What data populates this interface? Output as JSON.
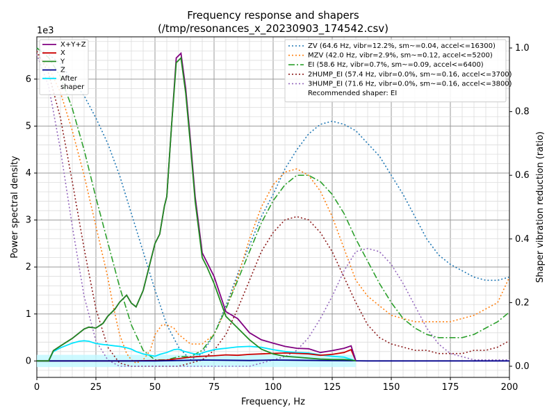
{
  "chart_data": {
    "type": "line",
    "title": "Frequency response and shapers\n(/tmp/resonances_x_20230903_174542.csv)",
    "xlabel": "Frequency, Hz",
    "ylabel": "Power spectral density",
    "y2label": "Shaper vibration reduction (ratio)",
    "y_scale_label": "1e3",
    "xlim": [
      0,
      200
    ],
    "ylim": [
      -350,
      6900
    ],
    "y2lim": [
      -0.035,
      1.035
    ],
    "x_ticks": [
      0,
      25,
      50,
      75,
      100,
      125,
      150,
      175,
      200
    ],
    "y_ticks": [
      0,
      1000,
      2000,
      3000,
      4000,
      5000,
      6000
    ],
    "y_tick_labels": [
      "0",
      "1",
      "2",
      "3",
      "4",
      "5",
      "6"
    ],
    "y2_ticks": [
      0.0,
      0.2,
      0.4,
      0.6,
      0.8,
      1.0
    ],
    "y2_tick_labels": [
      "0.0",
      "0.2",
      "0.4",
      "0.6",
      "0.8",
      "1.0"
    ],
    "grid": true,
    "psd_series": [
      {
        "name": "X+Y+Z",
        "color": "#800080",
        "dash": "solid",
        "x": [
          0,
          5,
          7,
          10,
          15,
          20,
          22,
          25,
          28,
          30,
          33,
          35,
          38,
          40,
          42,
          45,
          48,
          50,
          52,
          54,
          55,
          57,
          59,
          61,
          63,
          65,
          67,
          70,
          72,
          75,
          80,
          85,
          90,
          95,
          100,
          105,
          110,
          115,
          120,
          125,
          130,
          133,
          135
        ],
        "y": [
          0,
          0,
          220,
          320,
          480,
          680,
          720,
          700,
          800,
          950,
          1100,
          1250,
          1400,
          1230,
          1150,
          1500,
          2100,
          2500,
          2700,
          3300,
          3500,
          5000,
          6450,
          6550,
          5800,
          4700,
          3500,
          2300,
          2100,
          1800,
          1050,
          900,
          600,
          450,
          380,
          310,
          270,
          260,
          180,
          220,
          270,
          320,
          0
        ]
      },
      {
        "name": "X",
        "color": "#cc0000",
        "dash": "solid",
        "x": [
          0,
          10,
          20,
          30,
          40,
          50,
          55,
          60,
          65,
          70,
          75,
          80,
          85,
          90,
          95,
          100,
          105,
          110,
          115,
          120,
          125,
          130,
          133,
          135
        ],
        "y": [
          0,
          0,
          0,
          0,
          0,
          10,
          20,
          50,
          80,
          100,
          110,
          130,
          120,
          140,
          150,
          160,
          170,
          160,
          150,
          120,
          140,
          180,
          240,
          0
        ]
      },
      {
        "name": "Y",
        "color": "#228B22",
        "dash": "solid",
        "x": [
          0,
          5,
          7,
          10,
          15,
          20,
          22,
          25,
          28,
          30,
          33,
          35,
          38,
          40,
          42,
          45,
          48,
          50,
          52,
          54,
          55,
          57,
          59,
          61,
          63,
          65,
          67,
          70,
          72,
          75,
          80,
          85,
          90,
          95,
          100,
          105,
          110,
          115,
          120,
          125,
          130,
          133,
          135
        ],
        "y": [
          0,
          0,
          220,
          320,
          480,
          680,
          720,
          700,
          800,
          950,
          1100,
          1250,
          1400,
          1230,
          1150,
          1500,
          2100,
          2500,
          2700,
          3300,
          3500,
          5000,
          6350,
          6450,
          5700,
          4600,
          3400,
          2200,
          2000,
          1650,
          950,
          700,
          450,
          250,
          150,
          100,
          80,
          60,
          40,
          30,
          30,
          20,
          0
        ]
      },
      {
        "name": "Z",
        "color": "#00008B",
        "dash": "solid",
        "x": [
          0,
          10,
          20,
          30,
          40,
          50,
          60,
          70,
          80,
          90,
          100,
          110,
          120,
          130,
          140,
          150,
          160,
          170,
          180,
          190,
          200
        ],
        "y": [
          0,
          0,
          0,
          0,
          0,
          0,
          10,
          20,
          15,
          10,
          20,
          15,
          10,
          5,
          0,
          0,
          0,
          0,
          0,
          0,
          0
        ]
      },
      {
        "name": "After\nshaper",
        "color": "#00e5ff",
        "dash": "solid",
        "x": [
          0,
          5,
          7,
          10,
          15,
          18,
          20,
          22,
          25,
          28,
          30,
          33,
          35,
          38,
          40,
          42,
          45,
          48,
          50,
          52,
          55,
          58,
          60,
          62,
          65,
          68,
          70,
          72,
          75,
          78,
          80,
          85,
          90,
          95,
          100,
          105,
          110,
          115,
          120,
          125,
          130,
          135
        ],
        "y": [
          0,
          0,
          200,
          280,
          380,
          420,
          430,
          420,
          370,
          350,
          340,
          320,
          310,
          280,
          250,
          200,
          150,
          120,
          100,
          140,
          180,
          240,
          250,
          210,
          170,
          140,
          170,
          200,
          240,
          260,
          270,
          300,
          310,
          290,
          240,
          200,
          180,
          170,
          130,
          100,
          80,
          0
        ]
      }
    ],
    "shaper_series": [
      {
        "name": "ZV (64.6 Hz, vibr=12.2%, sm~=0.04, accel<=16300)",
        "color": "#1f77b4",
        "dash": "dotted",
        "x": [
          0,
          5,
          10,
          15,
          20,
          25,
          30,
          35,
          40,
          45,
          50,
          55,
          60,
          65,
          70,
          75,
          80,
          85,
          90,
          95,
          100,
          105,
          110,
          115,
          120,
          125,
          130,
          135,
          140,
          145,
          150,
          155,
          160,
          165,
          170,
          175,
          180,
          185,
          190,
          195,
          200
        ],
        "y": [
          1.0,
          0.98,
          0.95,
          0.9,
          0.85,
          0.78,
          0.7,
          0.6,
          0.48,
          0.36,
          0.24,
          0.13,
          0.06,
          0.02,
          0.04,
          0.1,
          0.19,
          0.29,
          0.38,
          0.47,
          0.54,
          0.62,
          0.68,
          0.73,
          0.76,
          0.77,
          0.76,
          0.74,
          0.7,
          0.66,
          0.6,
          0.54,
          0.47,
          0.4,
          0.35,
          0.32,
          0.3,
          0.28,
          0.27,
          0.27,
          0.28
        ]
      },
      {
        "name": "MZV (42.0 Hz, vibr=2.9%, sm~=0.12, accel<=5200)",
        "color": "#ff7f0e",
        "dash": "dotted",
        "x": [
          0,
          5,
          10,
          15,
          20,
          25,
          30,
          32,
          35,
          38,
          40,
          42,
          45,
          48,
          50,
          53,
          55,
          58,
          60,
          65,
          70,
          75,
          80,
          85,
          90,
          95,
          100,
          105,
          110,
          115,
          120,
          125,
          130,
          135,
          140,
          145,
          150,
          155,
          160,
          165,
          170,
          175,
          180,
          185,
          190,
          195,
          200
        ],
        "y": [
          0.98,
          0.94,
          0.86,
          0.74,
          0.6,
          0.44,
          0.28,
          0.2,
          0.1,
          0.04,
          0.02,
          0.01,
          0.02,
          0.05,
          0.1,
          0.13,
          0.13,
          0.12,
          0.1,
          0.07,
          0.07,
          0.1,
          0.18,
          0.28,
          0.4,
          0.5,
          0.57,
          0.61,
          0.62,
          0.6,
          0.55,
          0.47,
          0.37,
          0.27,
          0.22,
          0.19,
          0.16,
          0.15,
          0.14,
          0.14,
          0.14,
          0.14,
          0.15,
          0.16,
          0.18,
          0.2,
          0.28
        ]
      },
      {
        "name": "EI (58.6 Hz, vibr=0.7%, sm~=0.09, accel<=6400)",
        "color": "#2ca02c",
        "dash": "dashdot",
        "x": [
          0,
          5,
          10,
          15,
          20,
          25,
          30,
          35,
          40,
          45,
          50,
          55,
          60,
          65,
          70,
          75,
          80,
          85,
          90,
          95,
          100,
          105,
          110,
          115,
          120,
          125,
          130,
          135,
          140,
          145,
          150,
          155,
          160,
          165,
          170,
          175,
          180,
          185,
          190,
          195,
          200
        ],
        "y": [
          1.0,
          0.97,
          0.91,
          0.81,
          0.68,
          0.53,
          0.39,
          0.25,
          0.13,
          0.05,
          0.02,
          0.02,
          0.03,
          0.03,
          0.05,
          0.1,
          0.18,
          0.27,
          0.36,
          0.45,
          0.52,
          0.57,
          0.6,
          0.6,
          0.58,
          0.54,
          0.48,
          0.4,
          0.33,
          0.26,
          0.2,
          0.15,
          0.12,
          0.1,
          0.09,
          0.09,
          0.09,
          0.1,
          0.12,
          0.14,
          0.17
        ]
      },
      {
        "name": "2HUMP_EI (57.4 Hz, vibr=0.0%, sm~=0.16, accel<=3700)",
        "color": "#8B1A1A",
        "dash": "dotted",
        "x": [
          0,
          5,
          10,
          15,
          20,
          25,
          30,
          35,
          40,
          45,
          50,
          55,
          60,
          65,
          70,
          75,
          80,
          85,
          90,
          95,
          100,
          105,
          110,
          115,
          120,
          125,
          130,
          135,
          140,
          145,
          150,
          155,
          160,
          165,
          170,
          175,
          180,
          185,
          190,
          195,
          200
        ],
        "y": [
          0.99,
          0.92,
          0.78,
          0.58,
          0.37,
          0.18,
          0.06,
          0.01,
          0.0,
          0.0,
          0.0,
          0.0,
          0.0,
          0.01,
          0.02,
          0.05,
          0.1,
          0.18,
          0.27,
          0.36,
          0.42,
          0.46,
          0.47,
          0.46,
          0.42,
          0.36,
          0.28,
          0.2,
          0.13,
          0.09,
          0.07,
          0.06,
          0.05,
          0.05,
          0.04,
          0.04,
          0.04,
          0.05,
          0.05,
          0.06,
          0.08
        ]
      },
      {
        "name": "3HUMP_EI (71.6 Hz, vibr=0.0%, sm~=0.16, accel<=3800)",
        "color": "#9467bd",
        "dash": "dotted",
        "x": [
          0,
          5,
          10,
          15,
          20,
          25,
          30,
          35,
          40,
          45,
          50,
          55,
          60,
          65,
          70,
          75,
          80,
          85,
          90,
          95,
          100,
          105,
          110,
          115,
          120,
          125,
          130,
          135,
          140,
          145,
          150,
          155,
          160,
          165,
          170,
          175,
          180,
          185,
          190,
          195,
          200
        ],
        "y": [
          0.98,
          0.88,
          0.68,
          0.44,
          0.22,
          0.08,
          0.02,
          0.0,
          0.0,
          0.0,
          0.0,
          0.0,
          0.0,
          0.0,
          0.0,
          0.0,
          0.0,
          0.0,
          0.0,
          0.01,
          0.02,
          0.03,
          0.05,
          0.09,
          0.15,
          0.22,
          0.3,
          0.36,
          0.37,
          0.36,
          0.32,
          0.26,
          0.19,
          0.12,
          0.07,
          0.04,
          0.03,
          0.02,
          0.02,
          0.02,
          0.02
        ]
      }
    ],
    "legend_left_position": "upper-left",
    "legend_right_position": "upper-right",
    "legend_note": "Recommended shaper: EI"
  }
}
